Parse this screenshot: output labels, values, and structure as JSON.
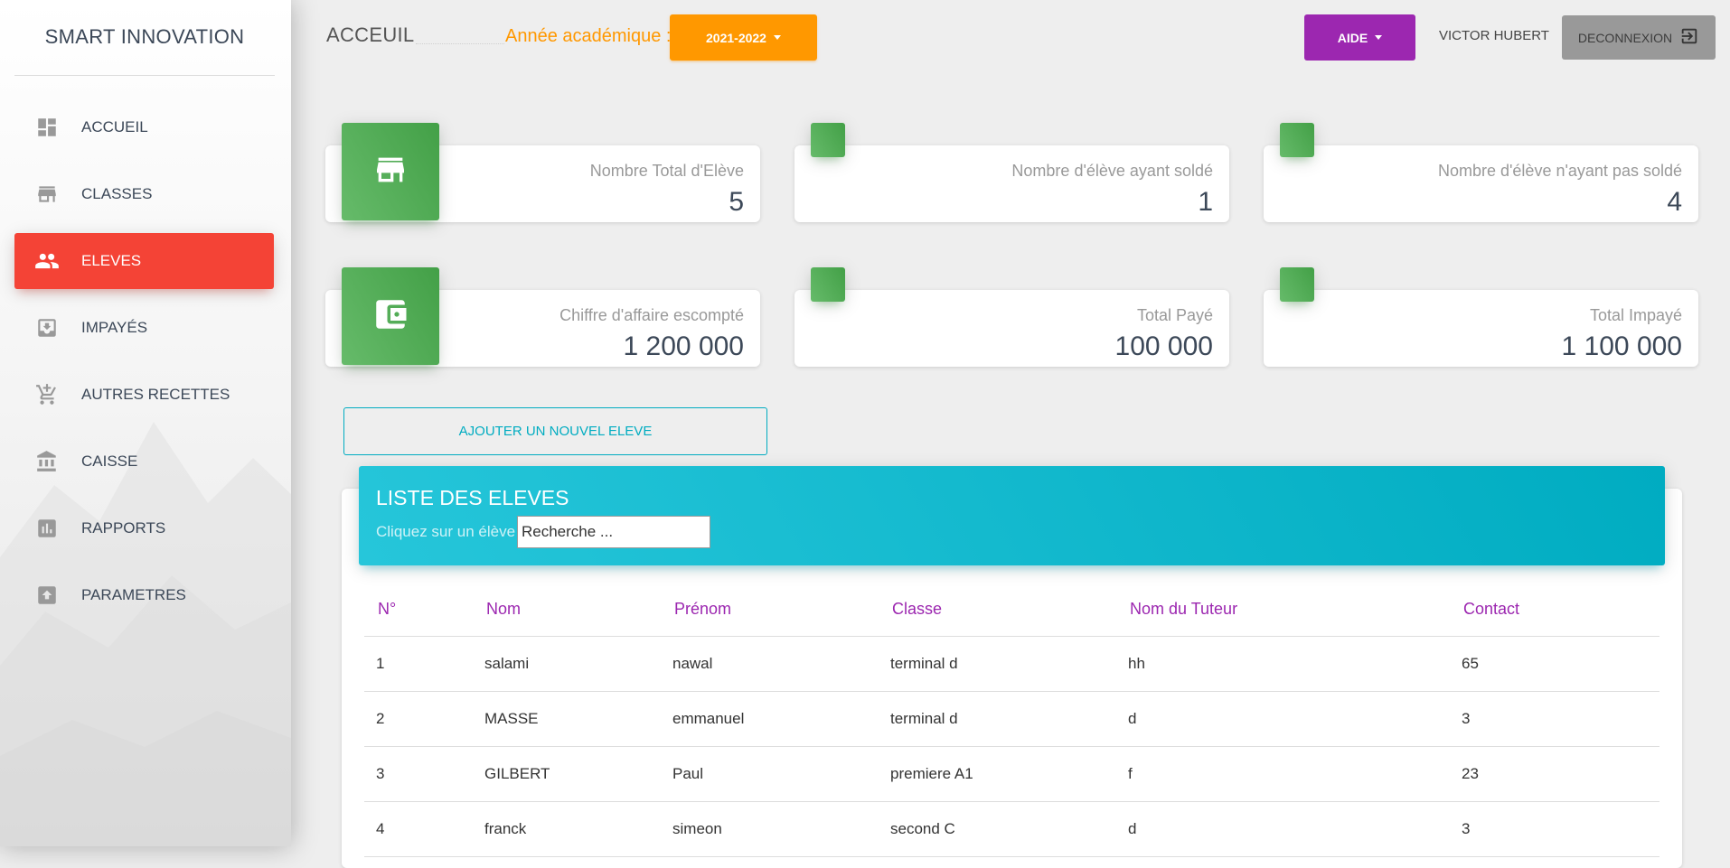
{
  "sidebar": {
    "brand": "SMART INNOVATION",
    "items": [
      {
        "label": "ACCUEIL",
        "icon": "dashboard-icon"
      },
      {
        "label": "CLASSES",
        "icon": "store-icon"
      },
      {
        "label": "ELEVES",
        "icon": "people-icon",
        "active": true
      },
      {
        "label": "IMPAYÉS",
        "icon": "inbox-icon"
      },
      {
        "label": "AUTRES RECETTES",
        "icon": "add-cart-icon"
      },
      {
        "label": "CAISSE",
        "icon": "bank-icon"
      },
      {
        "label": "RAPPORTS",
        "icon": "bar-chart-icon"
      },
      {
        "label": "PARAMETRES",
        "icon": "settings-box-icon"
      }
    ]
  },
  "header": {
    "title": "ACCEUIL",
    "year_label": "Année académique :",
    "year_value": "2021-2022",
    "help": "AIDE",
    "user": "VICTOR HUBERT",
    "logout": "DECONNEXION"
  },
  "stats": [
    {
      "label": "Nombre Total d'Elève",
      "value": "5"
    },
    {
      "label": "Nombre d'élève ayant soldé",
      "value": "1"
    },
    {
      "label": "Nombre d'élève n'ayant pas soldé",
      "value": "4"
    },
    {
      "label": "Chiffre d'affaire escompté",
      "value": "1 200 000"
    },
    {
      "label": "Total Payé",
      "value": "100 000"
    },
    {
      "label": "Total Impayé",
      "value": "1 100 000"
    }
  ],
  "add_button": "AJOUTER UN NOUVEL ELEVE",
  "list": {
    "title": "LISTE DES ELEVES",
    "subtitle": "Cliquez sur un élève",
    "search_placeholder": "Recherche ...",
    "columns": [
      "N°",
      "Nom",
      "Prénom",
      "Classe",
      "Nom du Tuteur",
      "Contact"
    ],
    "rows": [
      [
        "1",
        "salami",
        "nawal",
        "terminal d",
        "hh",
        "65"
      ],
      [
        "2",
        "MASSE",
        "emmanuel",
        "terminal d",
        "d",
        "3"
      ],
      [
        "3",
        "GILBERT",
        "Paul",
        "premiere A1",
        "f",
        "23"
      ],
      [
        "4",
        "franck",
        "simeon",
        "second C",
        "d",
        "3"
      ]
    ]
  },
  "colors": {
    "accent_red": "#f44336",
    "accent_orange": "#ff9800",
    "accent_purple": "#9c27b0",
    "accent_cyan": "#00acc1",
    "accent_green": "#4caf50"
  }
}
